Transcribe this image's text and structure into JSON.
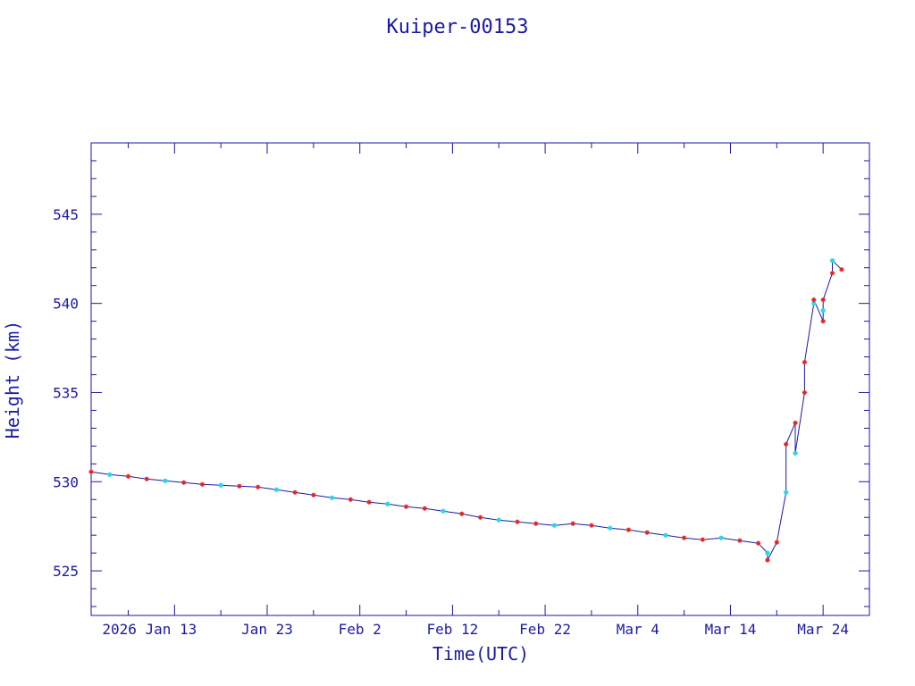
{
  "chart_data": {
    "type": "line",
    "title": "Kuiper-00153",
    "xlabel": "Time(UTC)",
    "ylabel": "Height (km)",
    "x_tick_labels": [
      "2026 Jan 13",
      "Jan 23",
      "Feb  2",
      "Feb 12",
      "Feb 22",
      "Mar  4",
      "Mar 14",
      "Mar 24"
    ],
    "y_tick_labels": [
      "525",
      "530",
      "535",
      "540",
      "545"
    ],
    "y_ticks": [
      525,
      530,
      535,
      540,
      545
    ],
    "xlim": [
      "2026-01-04",
      "2026-03-29"
    ],
    "ylim": [
      522.5,
      549
    ],
    "grid": false,
    "colors": {
      "axis": "#1a1aa6",
      "line": "#1a1aa6",
      "marker_a": "#e8231f",
      "marker_b": "#27d8e8"
    },
    "series": [
      {
        "marker": "red-asterisk-and-cyan-dot",
        "points": [
          [
            "2026-01-04",
            530.55
          ],
          [
            "2026-01-06",
            530.4
          ],
          [
            "2026-01-08",
            530.3
          ],
          [
            "2026-01-10",
            530.15
          ],
          [
            "2026-01-12",
            530.05
          ],
          [
            "2026-01-14",
            529.95
          ],
          [
            "2026-01-16",
            529.85
          ],
          [
            "2026-01-18",
            529.8
          ],
          [
            "2026-01-20",
            529.75
          ],
          [
            "2026-01-22",
            529.7
          ],
          [
            "2026-01-24",
            529.55
          ],
          [
            "2026-01-26",
            529.4
          ],
          [
            "2026-01-28",
            529.25
          ],
          [
            "2026-01-30",
            529.1
          ],
          [
            "2026-02-01",
            529.0
          ],
          [
            "2026-02-03",
            528.85
          ],
          [
            "2026-02-05",
            528.75
          ],
          [
            "2026-02-07",
            528.6
          ],
          [
            "2026-02-09",
            528.5
          ],
          [
            "2026-02-11",
            528.35
          ],
          [
            "2026-02-13",
            528.2
          ],
          [
            "2026-02-15",
            528.0
          ],
          [
            "2026-02-17",
            527.85
          ],
          [
            "2026-02-19",
            527.75
          ],
          [
            "2026-02-21",
            527.65
          ],
          [
            "2026-02-23",
            527.55
          ],
          [
            "2026-02-25",
            527.65
          ],
          [
            "2026-02-27",
            527.55
          ],
          [
            "2026-03-01",
            527.4
          ],
          [
            "2026-03-03",
            527.3
          ],
          [
            "2026-03-05",
            527.15
          ],
          [
            "2026-03-07",
            527.0
          ],
          [
            "2026-03-09",
            526.85
          ],
          [
            "2026-03-11",
            526.75
          ],
          [
            "2026-03-13",
            526.85
          ],
          [
            "2026-03-15",
            526.7
          ],
          [
            "2026-03-17",
            526.55
          ],
          [
            "2026-03-18",
            526.0
          ],
          [
            "2026-03-18",
            525.6
          ],
          [
            "2026-03-19",
            526.6
          ],
          [
            "2026-03-20",
            529.4
          ],
          [
            "2026-03-20",
            532.1
          ],
          [
            "2026-03-21",
            533.3
          ],
          [
            "2026-03-21",
            531.6
          ],
          [
            "2026-03-22",
            535.0
          ],
          [
            "2026-03-22",
            536.7
          ],
          [
            "2026-03-23",
            540.0
          ],
          [
            "2026-03-23",
            540.2
          ],
          [
            "2026-03-24",
            539.0
          ],
          [
            "2026-03-24",
            539.6
          ],
          [
            "2026-03-24",
            540.2
          ],
          [
            "2026-03-25",
            541.7
          ],
          [
            "2026-03-25",
            542.4
          ],
          [
            "2026-03-26",
            541.9
          ]
        ]
      }
    ]
  }
}
